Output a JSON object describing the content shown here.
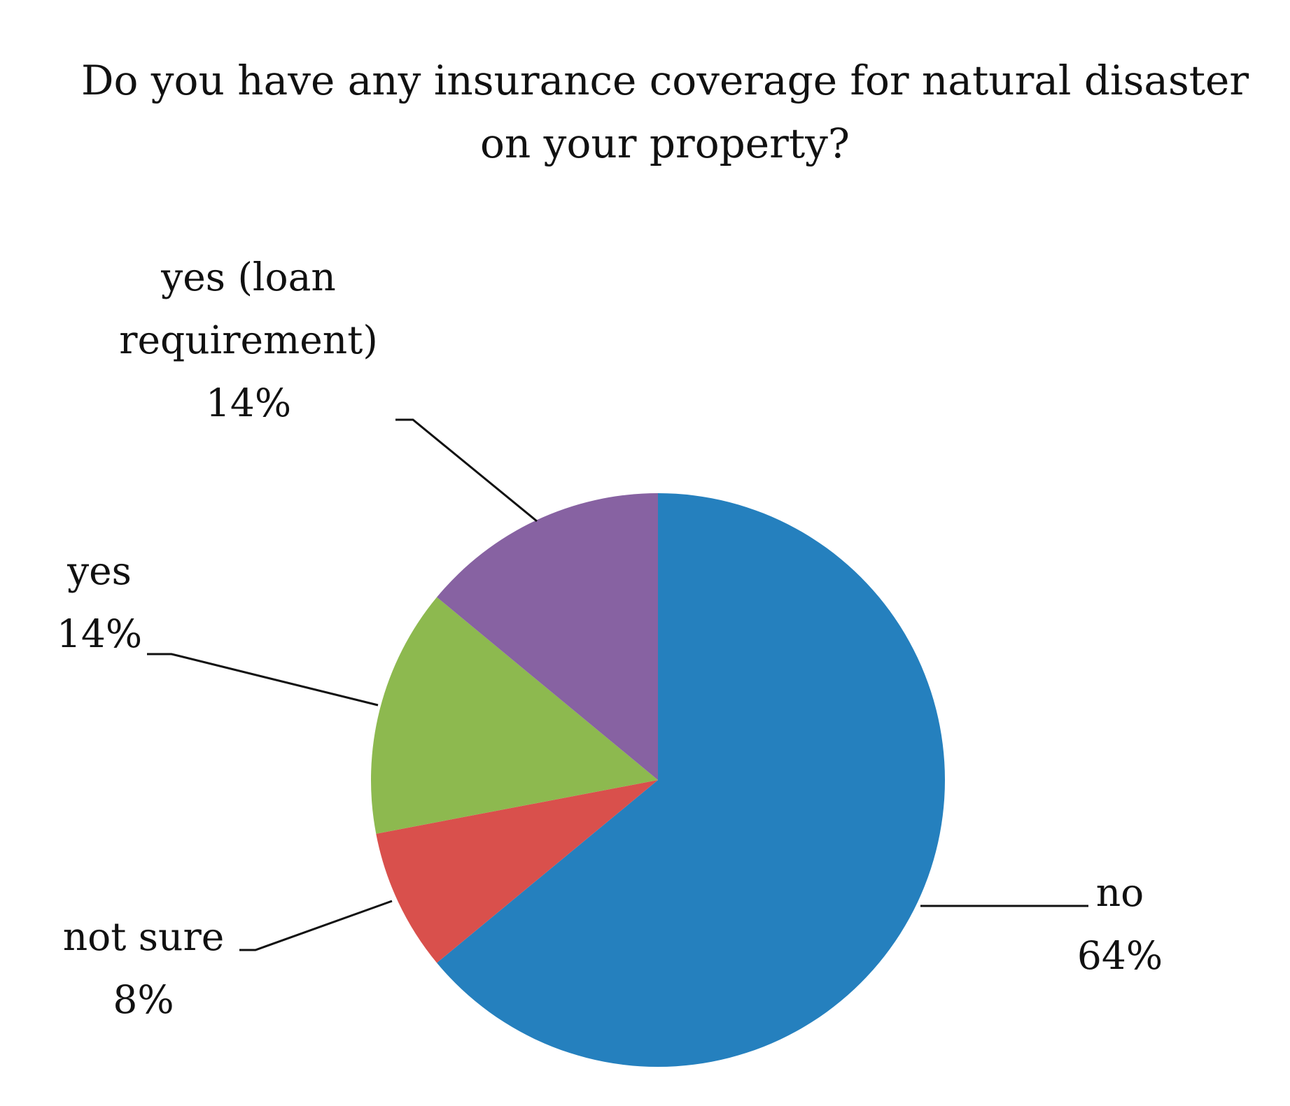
{
  "chart_data": {
    "type": "pie",
    "title_lines": [
      "Do you have any insurance coverage for natural disaster",
      "on your property?"
    ],
    "slices": [
      {
        "name_lines": [
          "no"
        ],
        "value": 64,
        "percent_label": "64%",
        "color": "#2580BE"
      },
      {
        "name_lines": [
          "not sure"
        ],
        "value": 8,
        "percent_label": "8%",
        "color": "#D9504C"
      },
      {
        "name_lines": [
          "yes"
        ],
        "value": 14,
        "percent_label": "14%",
        "color": "#8DB94F"
      },
      {
        "name_lines": [
          "yes (loan",
          "requirement)"
        ],
        "value": 14,
        "percent_label": "14%",
        "color": "#8762A2"
      }
    ],
    "start_angle_deg": 0,
    "direction": "clockwise",
    "legend": "none",
    "data_labels": "outside with leader lines"
  }
}
